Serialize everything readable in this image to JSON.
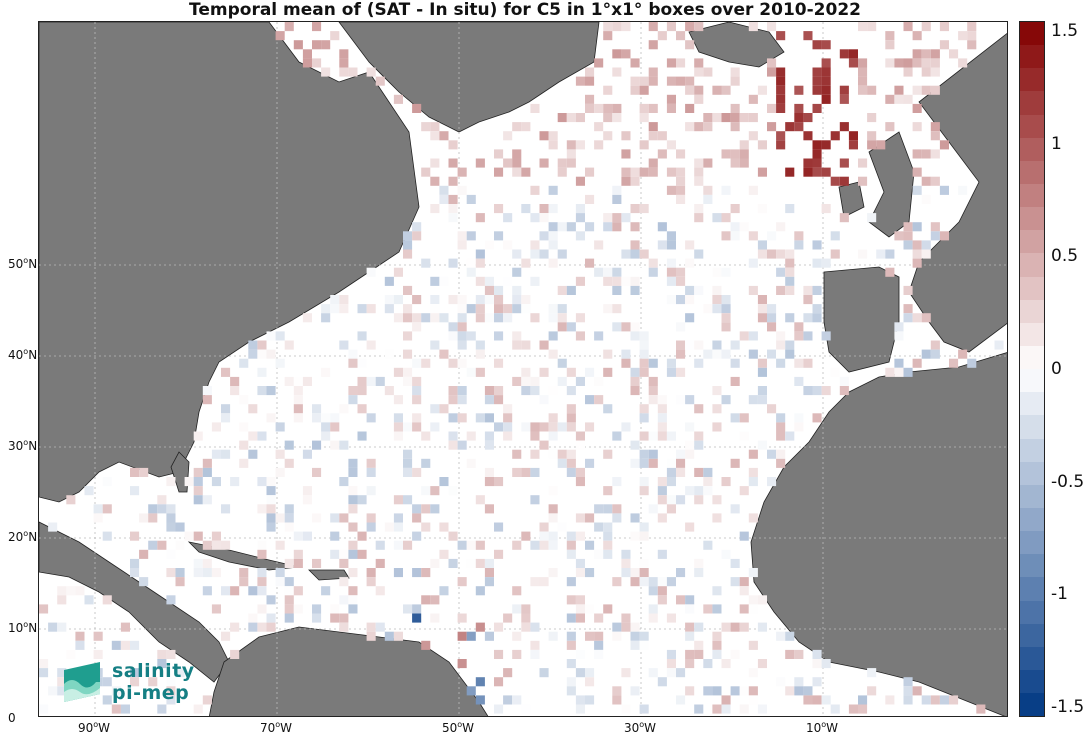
{
  "title": "Temporal mean of (SAT - In situ) for C5 in 1°x1° boxes over 2010-2022",
  "lat_labels": [
    {
      "deg": "50",
      "hemi": "N",
      "lat": 50
    },
    {
      "deg": "40",
      "hemi": "N",
      "lat": 40
    },
    {
      "deg": "30",
      "hemi": "N",
      "lat": 30
    },
    {
      "deg": "20",
      "hemi": "N",
      "lat": 20
    },
    {
      "deg": "10",
      "hemi": "N",
      "lat": 10
    },
    {
      "deg": "0",
      "hemi": "",
      "lat": 0
    }
  ],
  "lon_labels": [
    {
      "deg": "90",
      "hemi": "W",
      "lon": -90
    },
    {
      "deg": "70",
      "hemi": "W",
      "lon": -70
    },
    {
      "deg": "50",
      "hemi": "W",
      "lon": -50
    },
    {
      "deg": "30",
      "hemi": "W",
      "lon": -30
    },
    {
      "deg": "10",
      "hemi": "W",
      "lon": -10
    }
  ],
  "colorbar": {
    "ticks": [
      "1.5",
      "1",
      "0.5",
      "0",
      "-0.5",
      "-1",
      "-1.5"
    ],
    "min": -1.5,
    "max": 1.5
  },
  "logo": {
    "line1": "salinity",
    "line2": "pi-mep"
  },
  "colors": {
    "land": "#7a7a7a",
    "grid": "#bbbbbb",
    "positive": "#d7191c",
    "negative": "#1f5fd6"
  }
}
